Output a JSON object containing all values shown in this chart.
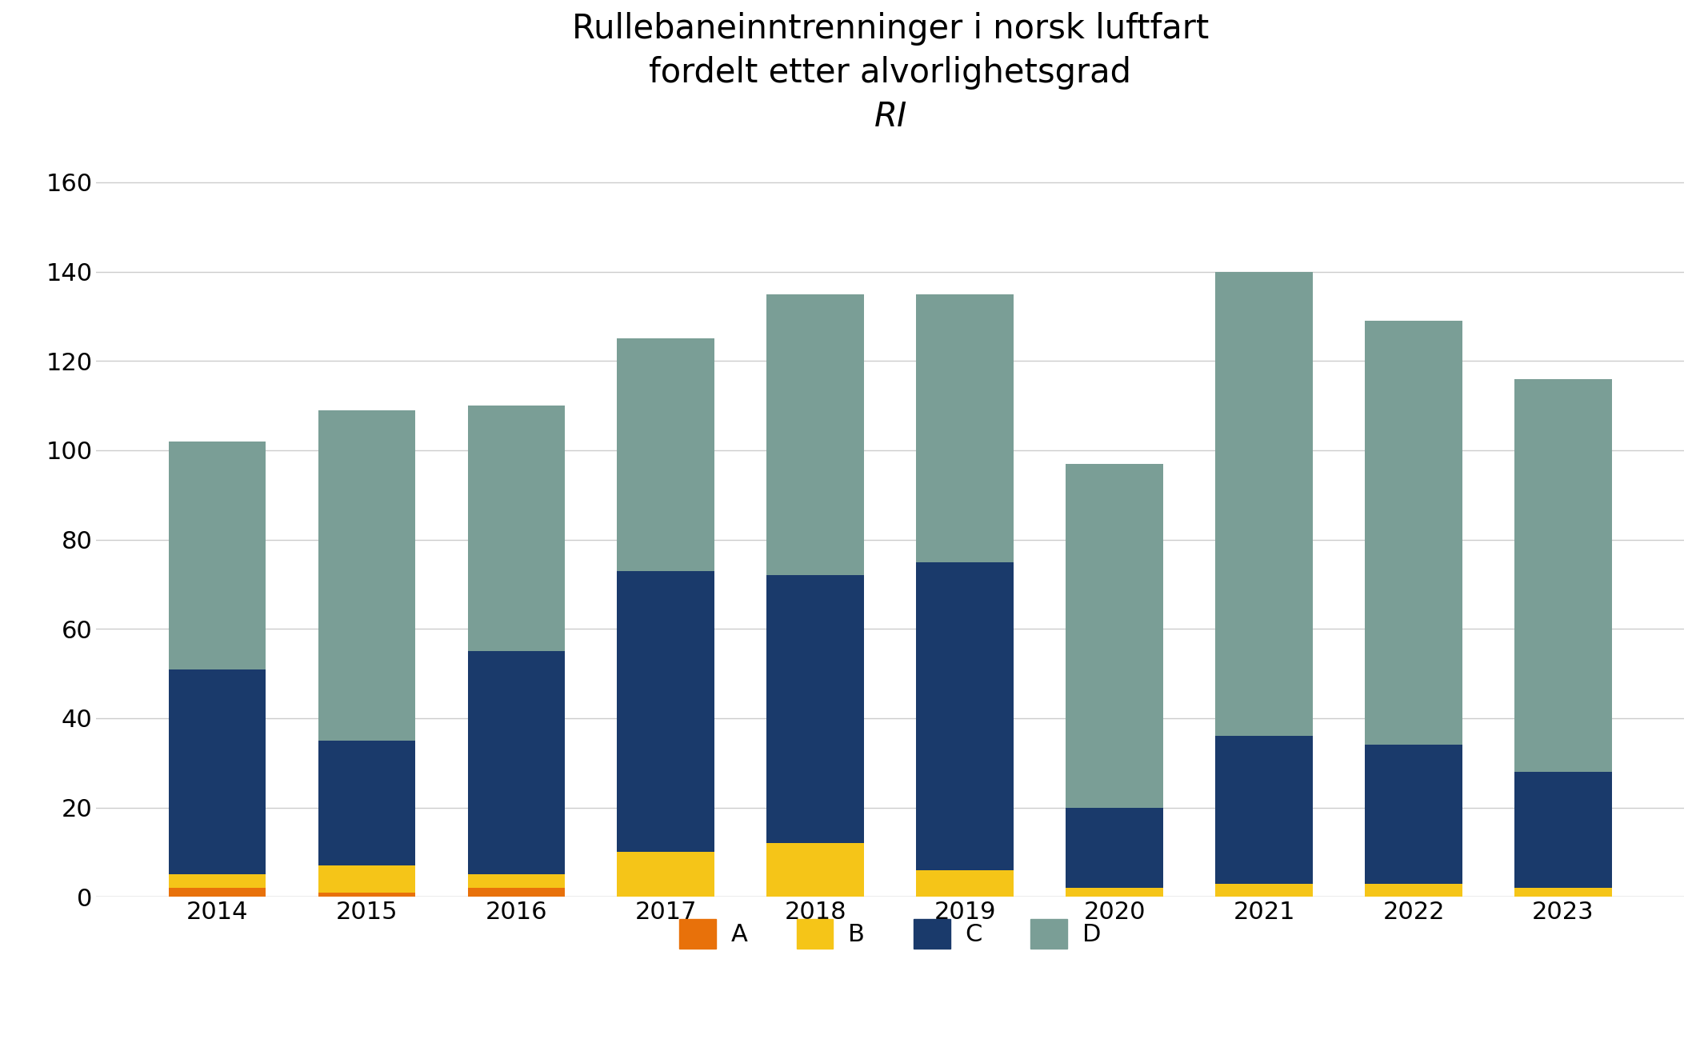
{
  "years": [
    2014,
    2015,
    2016,
    2017,
    2018,
    2019,
    2020,
    2021,
    2022,
    2023
  ],
  "A": [
    2,
    1,
    2,
    0,
    0,
    0,
    0,
    0,
    0,
    0
  ],
  "B": [
    3,
    6,
    3,
    10,
    12,
    6,
    2,
    3,
    3,
    2
  ],
  "C": [
    46,
    28,
    50,
    63,
    60,
    69,
    18,
    33,
    31,
    26
  ],
  "D": [
    51,
    74,
    55,
    52,
    63,
    60,
    77,
    104,
    95,
    88
  ],
  "colors": {
    "A": "#E8710A",
    "B": "#F5C518",
    "C": "#1A3A6B",
    "D": "#7A9E96"
  },
  "title_line1": "Rullebaneinntrenninger i norsk luftfart",
  "title_line2": "fordelt etter alvorlighetsgrad",
  "title_line3": "RI",
  "ylim": [
    0,
    165
  ],
  "yticks": [
    0,
    20,
    40,
    60,
    80,
    100,
    120,
    140,
    160
  ],
  "background_color": "#FFFFFF",
  "plot_background": "#FFFFFF",
  "bar_width": 0.65,
  "title_fontsize": 30,
  "tick_fontsize": 22,
  "legend_fontsize": 22,
  "grid_color": "#CCCCCC",
  "grid_linewidth": 1.0
}
